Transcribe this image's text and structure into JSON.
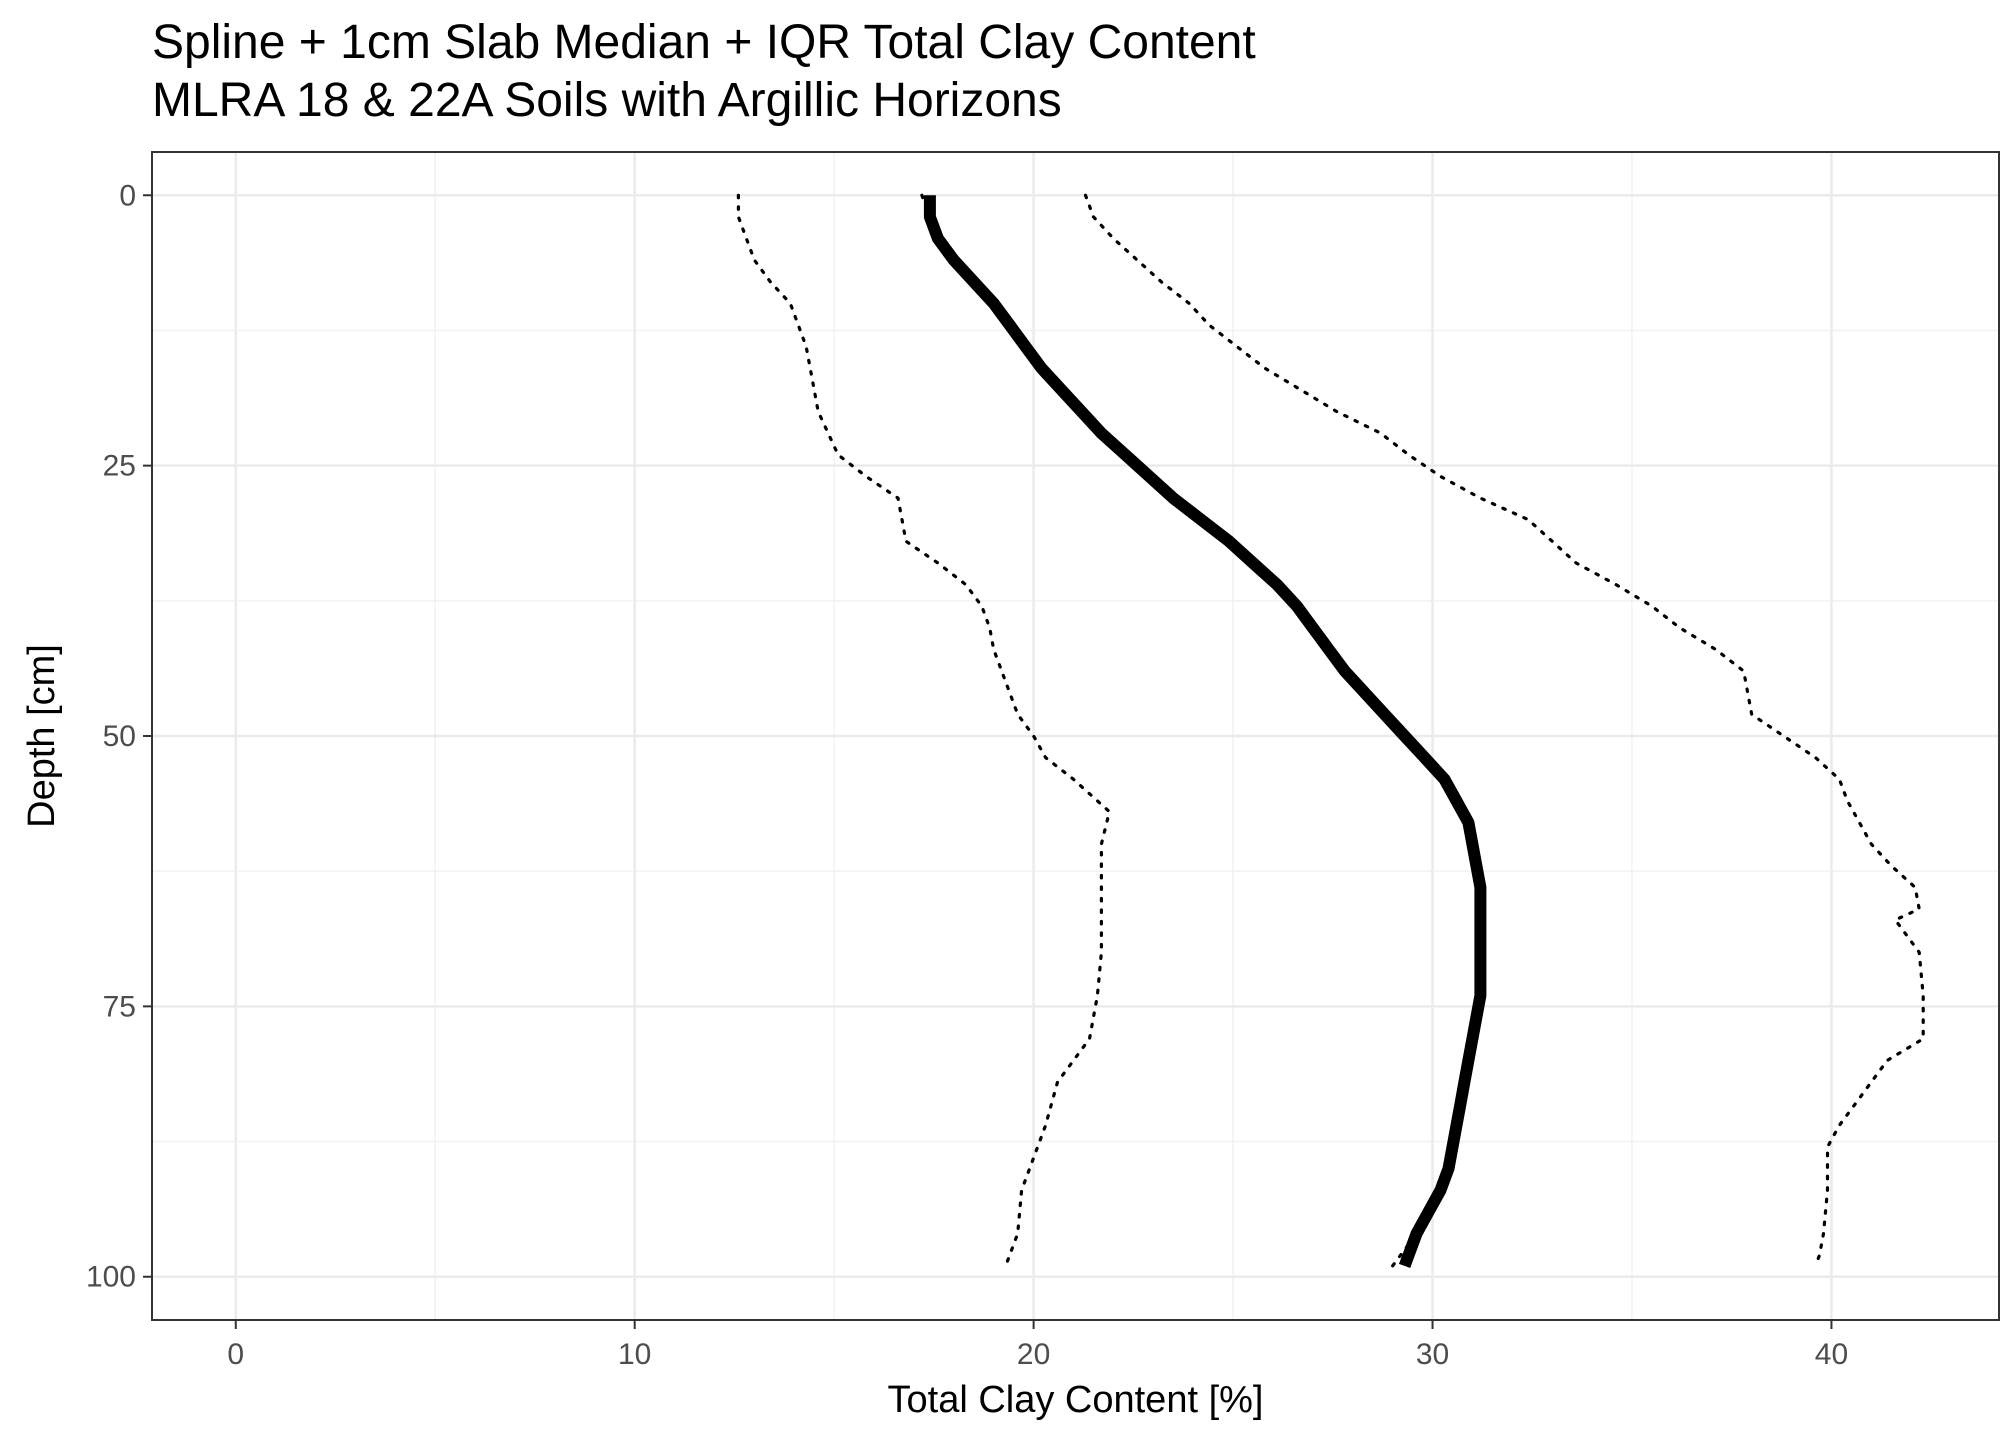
{
  "chart_data": {
    "type": "line",
    "title": "Spline + 1cm Slab Median + IQR Total Clay Content",
    "subtitle": "MLRA 18 & 22A Soils with Argillic Horizons",
    "xlabel": "Total Clay Content [%]",
    "ylabel": "Depth [cm]",
    "xlim": [
      -2.1,
      44.2
    ],
    "ylim": [
      104,
      -4
    ],
    "y_reversed": true,
    "x_ticks": [
      0,
      10,
      20,
      30,
      40
    ],
    "y_ticks": [
      0,
      25,
      50,
      75,
      100
    ],
    "grid": true,
    "legend": "none",
    "theme": "bw",
    "series": [
      {
        "style": "solid-thick",
        "points": [
          [
            17.4,
            0
          ],
          [
            17.4,
            2
          ],
          [
            17.6,
            4
          ],
          [
            18.0,
            6
          ],
          [
            18.5,
            8
          ],
          [
            19.0,
            10
          ],
          [
            19.4,
            12
          ],
          [
            19.8,
            14
          ],
          [
            20.2,
            16
          ],
          [
            20.7,
            18
          ],
          [
            21.2,
            20
          ],
          [
            21.7,
            22
          ],
          [
            22.3,
            24
          ],
          [
            22.9,
            26
          ],
          [
            23.5,
            28
          ],
          [
            24.2,
            30
          ],
          [
            24.9,
            32
          ],
          [
            25.5,
            34
          ],
          [
            26.1,
            36
          ],
          [
            26.6,
            38
          ],
          [
            27.0,
            40
          ],
          [
            27.4,
            42
          ],
          [
            27.8,
            44
          ],
          [
            28.3,
            46
          ],
          [
            28.8,
            48
          ],
          [
            29.3,
            50
          ],
          [
            29.8,
            52
          ],
          [
            30.3,
            54
          ],
          [
            30.6,
            56
          ],
          [
            30.9,
            58
          ],
          [
            31.0,
            60
          ],
          [
            31.1,
            62
          ],
          [
            31.2,
            64
          ],
          [
            31.2,
            66
          ],
          [
            31.2,
            68
          ],
          [
            31.2,
            70
          ],
          [
            31.2,
            72
          ],
          [
            31.2,
            74
          ],
          [
            31.1,
            76
          ],
          [
            31.0,
            78
          ],
          [
            30.9,
            80
          ],
          [
            30.8,
            82
          ],
          [
            30.7,
            84
          ],
          [
            30.6,
            86
          ],
          [
            30.5,
            88
          ],
          [
            30.4,
            90
          ],
          [
            30.2,
            92
          ],
          [
            29.9,
            94
          ],
          [
            29.6,
            96
          ],
          [
            29.4,
            98
          ],
          [
            29.3,
            99
          ]
        ]
      },
      {
        "style": "dotted",
        "points": [
          [
            17.2,
            0
          ],
          [
            17.4,
            2
          ],
          [
            17.6,
            4
          ],
          [
            18.0,
            6
          ],
          [
            18.5,
            8
          ],
          [
            19.0,
            10
          ],
          [
            19.4,
            12
          ],
          [
            19.8,
            14
          ],
          [
            20.2,
            16
          ],
          [
            20.7,
            18
          ],
          [
            21.2,
            20
          ],
          [
            21.7,
            22
          ],
          [
            22.3,
            24
          ],
          [
            22.9,
            26
          ],
          [
            23.5,
            28
          ],
          [
            24.2,
            30
          ],
          [
            24.9,
            32
          ],
          [
            25.5,
            34
          ],
          [
            26.1,
            36
          ],
          [
            26.6,
            38
          ],
          [
            27.0,
            40
          ],
          [
            27.4,
            42
          ],
          [
            27.8,
            44
          ],
          [
            28.3,
            46
          ],
          [
            28.8,
            48
          ],
          [
            29.3,
            50
          ],
          [
            29.8,
            52
          ],
          [
            30.3,
            54
          ],
          [
            30.6,
            56
          ],
          [
            30.9,
            58
          ],
          [
            31.0,
            60
          ],
          [
            31.1,
            62
          ],
          [
            31.2,
            64
          ],
          [
            31.2,
            66
          ],
          [
            31.2,
            68
          ],
          [
            31.2,
            70
          ],
          [
            31.2,
            72
          ],
          [
            31.2,
            74
          ],
          [
            31.1,
            76
          ],
          [
            31.0,
            78
          ],
          [
            30.9,
            80
          ],
          [
            30.8,
            82
          ],
          [
            30.7,
            84
          ],
          [
            30.6,
            86
          ],
          [
            30.5,
            88
          ],
          [
            30.4,
            90
          ],
          [
            30.2,
            92
          ],
          [
            29.9,
            94
          ],
          [
            29.6,
            96
          ],
          [
            29.2,
            98
          ],
          [
            29.0,
            99
          ]
        ]
      },
      {
        "style": "dotted",
        "points": [
          [
            12.6,
            0
          ],
          [
            12.6,
            2
          ],
          [
            13.0,
            6
          ],
          [
            13.4,
            8
          ],
          [
            13.9,
            10
          ],
          [
            14.3,
            14
          ],
          [
            14.5,
            18
          ],
          [
            14.6,
            20
          ],
          [
            15.1,
            24
          ],
          [
            15.8,
            26
          ],
          [
            16.6,
            28
          ],
          [
            16.8,
            32
          ],
          [
            17.6,
            34
          ],
          [
            18.3,
            36
          ],
          [
            18.7,
            38
          ],
          [
            18.9,
            40
          ],
          [
            19.0,
            42
          ],
          [
            19.2,
            44
          ],
          [
            19.4,
            46
          ],
          [
            19.6,
            48
          ],
          [
            20.0,
            50
          ],
          [
            20.3,
            52
          ],
          [
            21.0,
            54
          ],
          [
            21.6,
            56
          ],
          [
            21.9,
            57
          ],
          [
            21.7,
            60
          ],
          [
            21.7,
            64
          ],
          [
            21.7,
            70
          ],
          [
            21.6,
            74
          ],
          [
            21.4,
            78
          ],
          [
            21.0,
            80
          ],
          [
            20.6,
            82
          ],
          [
            20.3,
            86
          ],
          [
            20.1,
            88
          ],
          [
            19.9,
            90
          ],
          [
            19.7,
            92
          ],
          [
            19.6,
            96
          ],
          [
            19.4,
            98
          ],
          [
            19.3,
            99
          ]
        ]
      },
      {
        "style": "dotted",
        "points": [
          [
            21.3,
            0
          ],
          [
            21.5,
            2
          ],
          [
            22.0,
            4
          ],
          [
            22.6,
            6
          ],
          [
            23.2,
            8
          ],
          [
            23.9,
            10
          ],
          [
            24.4,
            12
          ],
          [
            25.1,
            14
          ],
          [
            25.8,
            16
          ],
          [
            26.7,
            18
          ],
          [
            27.6,
            20
          ],
          [
            28.7,
            22
          ],
          [
            29.4,
            24
          ],
          [
            30.2,
            26
          ],
          [
            31.2,
            28
          ],
          [
            32.4,
            30
          ],
          [
            33.0,
            32
          ],
          [
            33.6,
            34
          ],
          [
            34.6,
            36
          ],
          [
            35.5,
            38
          ],
          [
            36.2,
            40
          ],
          [
            37.1,
            42
          ],
          [
            37.8,
            44
          ],
          [
            38.0,
            48
          ],
          [
            38.8,
            50
          ],
          [
            39.6,
            52
          ],
          [
            40.2,
            54
          ],
          [
            40.4,
            56
          ],
          [
            40.7,
            58
          ],
          [
            41.0,
            60
          ],
          [
            41.5,
            62
          ],
          [
            42.1,
            64
          ],
          [
            42.2,
            66
          ],
          [
            41.6,
            67
          ],
          [
            42.2,
            70
          ],
          [
            42.3,
            74
          ],
          [
            42.3,
            78
          ],
          [
            41.4,
            80
          ],
          [
            41.0,
            82
          ],
          [
            40.6,
            84
          ],
          [
            40.2,
            86
          ],
          [
            39.9,
            88
          ],
          [
            39.9,
            92
          ],
          [
            39.8,
            96
          ],
          [
            39.7,
            98
          ],
          [
            39.6,
            99
          ]
        ]
      }
    ]
  }
}
